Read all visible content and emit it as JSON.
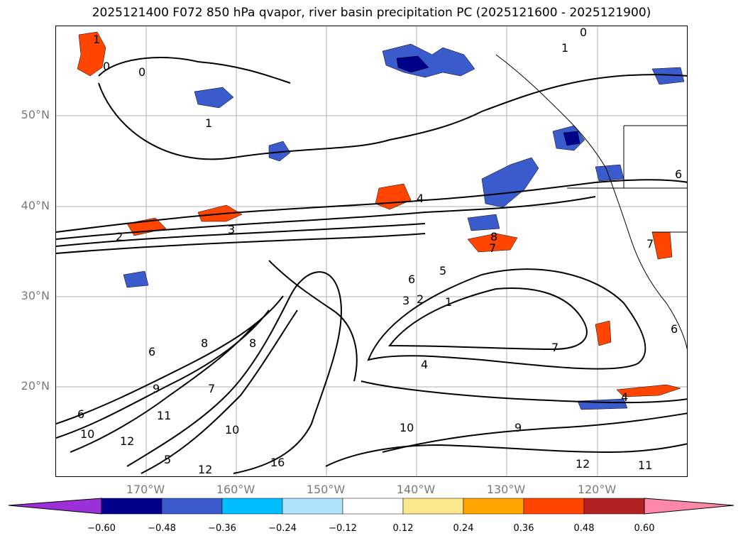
{
  "title": "2025121400 F072 850 hPa qvapor, river basin precipitation PC (2025121600 - 2025121900)",
  "map": {
    "lat_labels": [
      {
        "text": "50°N",
        "lat": 50
      },
      {
        "text": "40°N",
        "lat": 40
      },
      {
        "text": "30°N",
        "lat": 30
      },
      {
        "text": "20°N",
        "lat": 20
      }
    ],
    "lon_labels": [
      {
        "text": "170°W",
        "lon": -170
      },
      {
        "text": "160°W",
        "lon": -160
      },
      {
        "text": "150°W",
        "lon": -150
      },
      {
        "text": "140°W",
        "lon": -140
      },
      {
        "text": "130°W",
        "lon": -130
      },
      {
        "text": "120°W",
        "lon": -120
      }
    ],
    "contour_labels": [
      "1",
      "0",
      "0",
      "1",
      "1",
      "0",
      "4",
      "2",
      "3",
      "8",
      "7",
      "6",
      "5",
      "3",
      "2",
      "1",
      "6",
      "8",
      "8",
      "9",
      "7",
      "6",
      "11",
      "12",
      "10",
      "5",
      "10",
      "12",
      "16",
      "10",
      "9",
      "4",
      "7",
      "12",
      "11",
      "4",
      "6",
      "7",
      "6"
    ]
  },
  "colorbar": {
    "colors": [
      "#9b30d9",
      "#00008b",
      "#3a5bcc",
      "#00bfff",
      "#aee3fb",
      "#ffffff",
      "#fde890",
      "#ffa500",
      "#ff4500",
      "#b22222",
      "#ff88aa"
    ],
    "ticks": [
      "−0.60",
      "−0.48",
      "−0.36",
      "−0.24",
      "−0.12",
      "0.12",
      "0.24",
      "0.36",
      "0.48",
      "0.60"
    ]
  }
}
